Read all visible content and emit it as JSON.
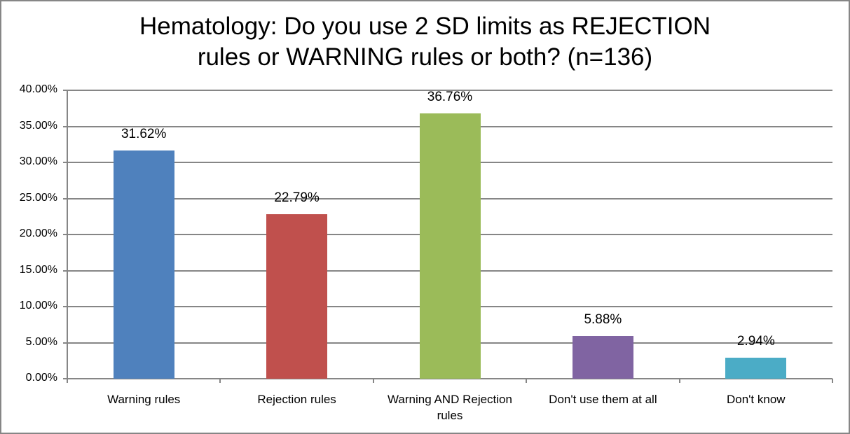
{
  "chart_data": {
    "type": "bar",
    "title": "Hematology: Do you use 2 SD limits as REJECTION rules or WARNING rules or both? (n=136)",
    "title_lines": [
      "Hematology: Do you use 2 SD limits as REJECTION",
      "rules or WARNING rules or both? (n=136)"
    ],
    "xlabel": "",
    "ylabel": "",
    "ylim": [
      0,
      40
    ],
    "grid": true,
    "legend": "none",
    "categories": [
      "Warning rules",
      "Rejection rules",
      "Warning AND Rejection rules",
      "Don't use them at all",
      "Don't know"
    ],
    "values": [
      31.62,
      22.79,
      36.76,
      5.88,
      2.94
    ],
    "data_labels": [
      "31.62%",
      "22.79%",
      "36.76%",
      "5.88%",
      "2.94%"
    ],
    "colors": [
      "#4f81bd",
      "#c0504d",
      "#9bbb59",
      "#8064a2",
      "#4bacc6"
    ],
    "y_ticks": [
      "0.00%",
      "5.00%",
      "10.00%",
      "15.00%",
      "20.00%",
      "25.00%",
      "30.00%",
      "35.00%",
      "40.00%"
    ]
  }
}
